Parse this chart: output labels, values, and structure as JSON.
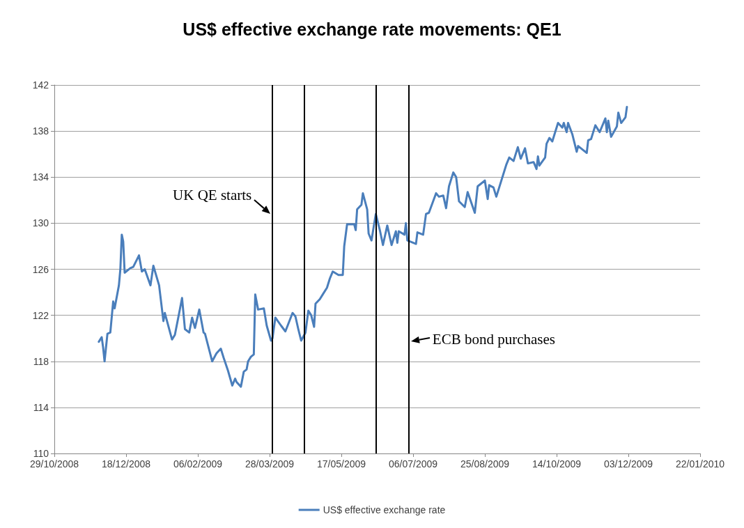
{
  "chart_data": {
    "type": "line",
    "title": "US$ effective exchange rate movements: QE1",
    "series": [
      {
        "name": "US$ effective exchange rate",
        "color": "#4a7ebb",
        "x": [
          "2008-11-29",
          "2008-12-01",
          "2008-12-02",
          "2008-12-03",
          "2008-12-05",
          "2008-12-07",
          "2008-12-09",
          "2008-12-10",
          "2008-12-13",
          "2008-12-14",
          "2008-12-15",
          "2008-12-16",
          "2008-12-17",
          "2008-12-21",
          "2008-12-23",
          "2008-12-27",
          "2008-12-29",
          "2008-12-31",
          "2009-01-04",
          "2009-01-06",
          "2009-01-10",
          "2009-01-13",
          "2009-01-14",
          "2009-01-19",
          "2009-01-21",
          "2009-01-24",
          "2009-01-26",
          "2009-01-28",
          "2009-01-31",
          "2009-02-02",
          "2009-02-04",
          "2009-02-07",
          "2009-02-10",
          "2009-02-11",
          "2009-02-16",
          "2009-02-19",
          "2009-02-22",
          "2009-02-24",
          "2009-02-27",
          "2009-03-02",
          "2009-03-04",
          "2009-03-05",
          "2009-03-08",
          "2009-03-10",
          "2009-03-12",
          "2009-03-13",
          "2009-03-15",
          "2009-03-17",
          "2009-03-18",
          "2009-03-20",
          "2009-03-24",
          "2009-03-26",
          "2009-03-29",
          "2009-03-30",
          "2009-04-01",
          "2009-04-05",
          "2009-04-08",
          "2009-04-13",
          "2009-04-15",
          "2009-04-17",
          "2009-04-19",
          "2009-04-22",
          "2009-04-24",
          "2009-04-26",
          "2009-04-28",
          "2009-04-29",
          "2009-05-02",
          "2009-05-04",
          "2009-05-07",
          "2009-05-09",
          "2009-05-11",
          "2009-05-15",
          "2009-05-18",
          "2009-05-19",
          "2009-05-21",
          "2009-05-26",
          "2009-05-27",
          "2009-05-28",
          "2009-05-31",
          "2009-06-01",
          "2009-06-04",
          "2009-06-05",
          "2009-06-07",
          "2009-06-10",
          "2009-06-13",
          "2009-06-15",
          "2009-06-18",
          "2009-06-21",
          "2009-06-24",
          "2009-06-25",
          "2009-06-26",
          "2009-06-30",
          "2009-07-01",
          "2009-07-02",
          "2009-07-08",
          "2009-07-09",
          "2009-07-13",
          "2009-07-15",
          "2009-07-17",
          "2009-07-22",
          "2009-07-24",
          "2009-07-27",
          "2009-07-29",
          "2009-07-31",
          "2009-08-03",
          "2009-08-05",
          "2009-08-07",
          "2009-08-11",
          "2009-08-13",
          "2009-08-18",
          "2009-08-20",
          "2009-08-25",
          "2009-08-27",
          "2009-08-28",
          "2009-08-31",
          "2009-09-02",
          "2009-09-06",
          "2009-09-09",
          "2009-09-11",
          "2009-09-14",
          "2009-09-17",
          "2009-09-19",
          "2009-09-22",
          "2009-09-24",
          "2009-09-28",
          "2009-09-30",
          "2009-10-01",
          "2009-10-02",
          "2009-10-06",
          "2009-10-07",
          "2009-10-09",
          "2009-10-11",
          "2009-10-15",
          "2009-10-18",
          "2009-10-19",
          "2009-10-21",
          "2009-10-22",
          "2009-10-25",
          "2009-10-28",
          "2009-10-29",
          "2009-11-01",
          "2009-11-04",
          "2009-11-05",
          "2009-11-07",
          "2009-11-10",
          "2009-11-13",
          "2009-11-17",
          "2009-11-18",
          "2009-11-19",
          "2009-11-21",
          "2009-11-25",
          "2009-11-26",
          "2009-11-28",
          "2009-12-01",
          "2009-12-02"
        ],
        "values": [
          119.7,
          120.1,
          119.2,
          118.0,
          120.4,
          120.5,
          123.2,
          122.6,
          124.6,
          126.0,
          129.0,
          128.4,
          125.7,
          126.1,
          126.2,
          127.2,
          125.8,
          126.0,
          124.6,
          126.3,
          124.6,
          121.5,
          122.2,
          119.9,
          120.3,
          122.2,
          123.5,
          120.8,
          120.5,
          121.8,
          120.9,
          122.5,
          120.5,
          120.4,
          118.0,
          118.7,
          119.1,
          118.3,
          117.2,
          115.9,
          116.5,
          116.2,
          115.8,
          117.1,
          117.3,
          118.0,
          118.4,
          118.6,
          123.8,
          122.5,
          122.6,
          121.1,
          119.8,
          120.0,
          121.8,
          121.1,
          120.6,
          122.2,
          121.9,
          120.8,
          119.8,
          120.5,
          122.4,
          122.0,
          121.0,
          123.0,
          123.4,
          123.8,
          124.4,
          125.2,
          125.8,
          125.5,
          125.5,
          128.0,
          129.9,
          129.9,
          129.4,
          131.2,
          131.6,
          132.6,
          131.2,
          129.1,
          128.5,
          130.8,
          129.3,
          128.1,
          129.8,
          128.1,
          129.3,
          128.3,
          129.3,
          129.0,
          130.0,
          128.5,
          128.2,
          129.2,
          129.0,
          130.8,
          130.9,
          132.6,
          132.3,
          132.4,
          131.3,
          133.2,
          134.4,
          134.0,
          131.9,
          131.4,
          132.7,
          130.9,
          133.2,
          133.7,
          132.1,
          133.3,
          133.1,
          132.3,
          133.9,
          135.1,
          135.7,
          135.4,
          136.6,
          135.6,
          136.5,
          135.2,
          135.3,
          134.7,
          135.8,
          135.0,
          135.7,
          136.9,
          137.4,
          137.1,
          138.7,
          138.3,
          138.7,
          137.9,
          138.7,
          137.7,
          136.2,
          136.7,
          136.4,
          136.1,
          137.2,
          137.3,
          138.5,
          137.9,
          139.1,
          137.9,
          138.9,
          137.5,
          138.4,
          139.6,
          138.7,
          139.2,
          140.1
        ]
      }
    ],
    "xlim": [
      "2008-10-29",
      "2010-01-22"
    ],
    "xticks": [
      {
        "value": "2008-10-29",
        "label": "29/10/2008"
      },
      {
        "value": "2008-12-18",
        "label": "18/12/2008"
      },
      {
        "value": "2009-02-06",
        "label": "06/02/2009"
      },
      {
        "value": "2009-03-28",
        "label": "28/03/2009"
      },
      {
        "value": "2009-05-17",
        "label": "17/05/2009"
      },
      {
        "value": "2009-07-06",
        "label": "06/07/2009"
      },
      {
        "value": "2009-08-25",
        "label": "25/08/2009"
      },
      {
        "value": "2009-10-14",
        "label": "14/10/2009"
      },
      {
        "value": "2009-12-03",
        "label": "03/12/2009"
      },
      {
        "value": "2010-01-22",
        "label": "22/01/2010"
      }
    ],
    "ylim": [
      110,
      142
    ],
    "yticks": [
      110,
      114,
      118,
      122,
      126,
      130,
      134,
      138,
      142
    ],
    "ref_lines": [
      {
        "axis": "x",
        "value": "2009-03-30",
        "label": "UK QE starts",
        "color": "#000000"
      },
      {
        "axis": "x",
        "value": "2009-04-21",
        "color": "#000000"
      },
      {
        "axis": "x",
        "value": "2009-06-10",
        "color": "#000000"
      },
      {
        "axis": "x",
        "value": "2009-07-03",
        "label": "ECB bond purchases",
        "color": "#000000"
      }
    ],
    "grid": "y",
    "legend": "bottom",
    "marker": "none",
    "line_style": "solid"
  }
}
